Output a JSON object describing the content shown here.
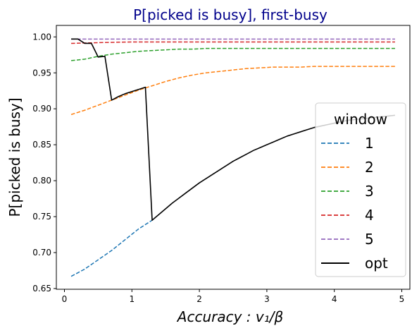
{
  "chart_data": {
    "type": "line",
    "title": "P[picked is busy], first-busy",
    "xlabel": "Accuracy : v₁/β",
    "ylabel": "P[picked is busy]",
    "xlim": [
      -0.12,
      5.12
    ],
    "ylim": [
      0.649,
      1.016
    ],
    "xticks": [
      0,
      1,
      2,
      3,
      4,
      5
    ],
    "yticks": [
      0.65,
      0.7,
      0.75,
      0.8,
      0.85,
      0.9,
      0.95,
      1.0
    ],
    "ytick_labels": [
      "0.65",
      "0.70",
      "0.75",
      "0.80",
      "0.85",
      "0.90",
      "0.95",
      "1.00"
    ],
    "legend_title": "window",
    "legend_position": "center-right",
    "grid": false,
    "series": [
      {
        "name": "1",
        "color": "#1f77b4",
        "style": "dashed",
        "x": [
          0.1,
          0.3,
          0.5,
          0.7,
          0.9,
          1.1,
          1.3
        ],
        "y": [
          0.667,
          0.677,
          0.69,
          0.703,
          0.718,
          0.733,
          0.745
        ]
      },
      {
        "name": "2",
        "color": "#ff7f0e",
        "style": "dashed",
        "x": [
          0.1,
          0.3,
          0.5,
          0.7,
          0.9,
          1.1,
          1.3,
          1.5,
          1.7,
          1.9,
          2.1,
          2.3,
          2.5,
          2.7,
          2.9,
          3.1,
          3.3,
          3.5,
          3.7,
          3.9,
          4.1,
          4.3,
          4.5,
          4.7,
          4.9
        ],
        "y": [
          0.892,
          0.898,
          0.905,
          0.912,
          0.919,
          0.926,
          0.932,
          0.938,
          0.943,
          0.947,
          0.95,
          0.952,
          0.954,
          0.956,
          0.957,
          0.958,
          0.958,
          0.958,
          0.959,
          0.959,
          0.959,
          0.959,
          0.959,
          0.959,
          0.959
        ]
      },
      {
        "name": "3",
        "color": "#2ca02c",
        "style": "dashed",
        "x": [
          0.1,
          0.3,
          0.5,
          0.7,
          0.9,
          1.1,
          1.3,
          1.5,
          1.7,
          1.9,
          2.1,
          2.3,
          2.5,
          2.7,
          2.9,
          3.1,
          3.3,
          3.5,
          3.7,
          3.9,
          4.1,
          4.3,
          4.5,
          4.7,
          4.9
        ],
        "y": [
          0.967,
          0.969,
          0.973,
          0.976,
          0.978,
          0.98,
          0.981,
          0.982,
          0.983,
          0.983,
          0.984,
          0.984,
          0.984,
          0.984,
          0.984,
          0.984,
          0.984,
          0.984,
          0.984,
          0.984,
          0.984,
          0.984,
          0.984,
          0.984,
          0.984
        ]
      },
      {
        "name": "4",
        "color": "#d62728",
        "style": "dashed",
        "x": [
          0.1,
          0.5,
          1.0,
          1.5,
          2.0,
          2.5,
          3.0,
          3.5,
          4.0,
          4.5,
          4.9
        ],
        "y": [
          0.991,
          0.992,
          0.993,
          0.993,
          0.993,
          0.993,
          0.993,
          0.993,
          0.993,
          0.993,
          0.993
        ]
      },
      {
        "name": "5",
        "color": "#9467bd",
        "style": "dashed",
        "x": [
          0.1,
          0.5,
          1.0,
          1.5,
          2.0,
          2.5,
          3.0,
          3.5,
          4.0,
          4.5,
          4.9
        ],
        "y": [
          0.997,
          0.997,
          0.997,
          0.997,
          0.997,
          0.997,
          0.997,
          0.997,
          0.997,
          0.997,
          0.997
        ]
      },
      {
        "name": "opt",
        "color": "#000000",
        "style": "solid",
        "x": [
          0.1,
          0.2,
          0.3,
          0.4,
          0.5,
          0.6,
          0.7,
          0.8,
          0.9,
          1.0,
          1.1,
          1.2,
          1.3,
          1.4,
          1.5,
          1.6,
          1.7,
          1.8,
          1.9,
          2.0,
          2.1,
          2.2,
          2.3,
          2.4,
          2.5,
          2.6,
          2.7,
          2.8,
          2.9,
          3.0,
          3.1,
          3.2,
          3.3,
          3.4,
          3.5,
          3.6,
          3.7,
          3.8,
          3.9,
          4.0,
          4.1,
          4.2,
          4.3,
          4.4,
          4.5,
          4.6,
          4.7,
          4.8,
          4.9
        ],
        "y": [
          0.997,
          0.997,
          0.991,
          0.991,
          0.972,
          0.973,
          0.912,
          0.917,
          0.921,
          0.924,
          0.927,
          0.93,
          0.745,
          0.753,
          0.761,
          0.769,
          0.776,
          0.783,
          0.79,
          0.797,
          0.803,
          0.809,
          0.815,
          0.821,
          0.827,
          0.832,
          0.837,
          0.842,
          0.846,
          0.85,
          0.854,
          0.858,
          0.862,
          0.865,
          0.868,
          0.871,
          0.874,
          0.876,
          0.878,
          0.88,
          0.882,
          0.884,
          0.885,
          0.886,
          0.887,
          0.888,
          0.889,
          0.89,
          0.891
        ]
      }
    ]
  }
}
